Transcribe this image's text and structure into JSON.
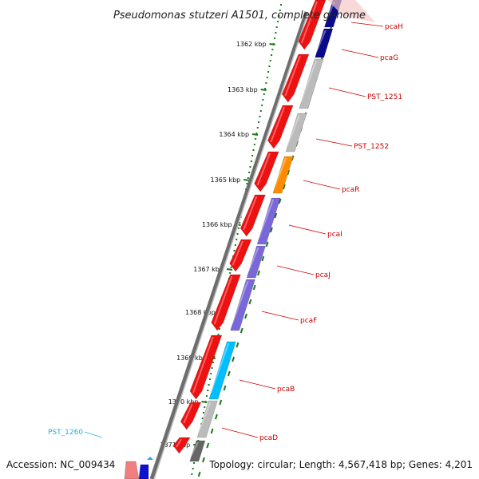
{
  "title": "Pseudomonas stutzeri A1501, complete genome",
  "footer": {
    "accession": "Accession: NC_009434",
    "summary": "Topology: circular; Length: 4,567,418 bp; Genes: 4,201"
  },
  "colors": {
    "forward_cds": "#ee1111",
    "backbone": "#888888",
    "tick": "#1a7a1a",
    "label_red": "#cc0000",
    "label_cyan": "#22b0e0",
    "dark_blue": "#0a0a8a",
    "grey": "#bbbbbb",
    "orange": "#ff8c00",
    "purple": "#7b68d8",
    "cyan": "#00bfff",
    "dark_grey": "#666666",
    "pink": "#f08080"
  },
  "ruler": [
    "1362 kbp",
    "1363 kbp",
    "1364 kbp",
    "1365 kbp",
    "1366 kbp",
    "1367 kbp",
    "1368 kbp",
    "1369 kbp",
    "1370 kbp",
    "1371 kbp"
  ],
  "genes": [
    {
      "label": "pcaH",
      "color": "dark_blue",
      "label_color": "label_red"
    },
    {
      "label": "pcaG",
      "color": "dark_blue",
      "label_color": "label_red"
    },
    {
      "label": "PST_1251",
      "color": "grey",
      "label_color": "label_red"
    },
    {
      "label": "PST_1252",
      "color": "grey",
      "label_color": "label_red"
    },
    {
      "label": "pcaR",
      "color": "orange",
      "label_color": "label_red"
    },
    {
      "label": "pcaI",
      "color": "purple",
      "label_color": "label_red"
    },
    {
      "label": "pcaJ",
      "color": "purple",
      "label_color": "label_red"
    },
    {
      "label": "pcaF",
      "color": "purple",
      "label_color": "label_red"
    },
    {
      "label": "pcaB",
      "color": "cyan",
      "label_color": "label_red"
    },
    {
      "label": "pcaD",
      "color": "grey",
      "label_color": "label_red"
    },
    {
      "label": "PST_1260",
      "color": "dark_grey",
      "label_color": "label_cyan"
    }
  ]
}
